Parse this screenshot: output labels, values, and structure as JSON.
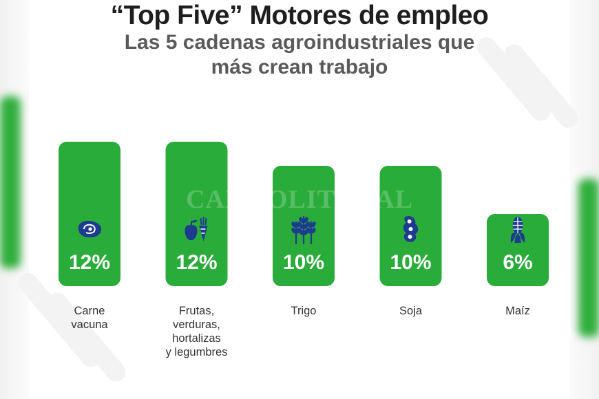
{
  "header": {
    "title": "“Top Five” Motores de empleo",
    "subtitle_line1": "Las 5 cadenas agroindustriales que",
    "subtitle_line2": "más crean trabajo"
  },
  "watermark": "CAMPOLITORAL",
  "colors": {
    "bar": "#2aac3a",
    "title": "#1e1e1e",
    "subtitle": "#5a5a5a"
  },
  "chart_data": {
    "type": "bar",
    "title": "“Top Five” Motores de empleo",
    "subtitle": "Las 5 cadenas agroindustriales que más crean trabajo",
    "categories": [
      "Carne vacuna",
      "Frutas, verduras, hortalizas y legumbres",
      "Trigo",
      "Soja",
      "Maíz"
    ],
    "category_lines": [
      [
        "Carne",
        "vacuna"
      ],
      [
        "Frutas,",
        "verduras,",
        "hortalizas",
        "y legumbres"
      ],
      [
        "Trigo"
      ],
      [
        "Soja"
      ],
      [
        "Maíz"
      ]
    ],
    "values": [
      12,
      12,
      10,
      10,
      6
    ],
    "value_labels": [
      "12%",
      "12%",
      "10%",
      "10%",
      "6%"
    ],
    "icons": [
      "steak-icon",
      "fruit-vegetable-icon",
      "wheat-icon",
      "soybean-icon",
      "corn-icon"
    ],
    "unit": "%",
    "grid": false,
    "legend": "none"
  }
}
